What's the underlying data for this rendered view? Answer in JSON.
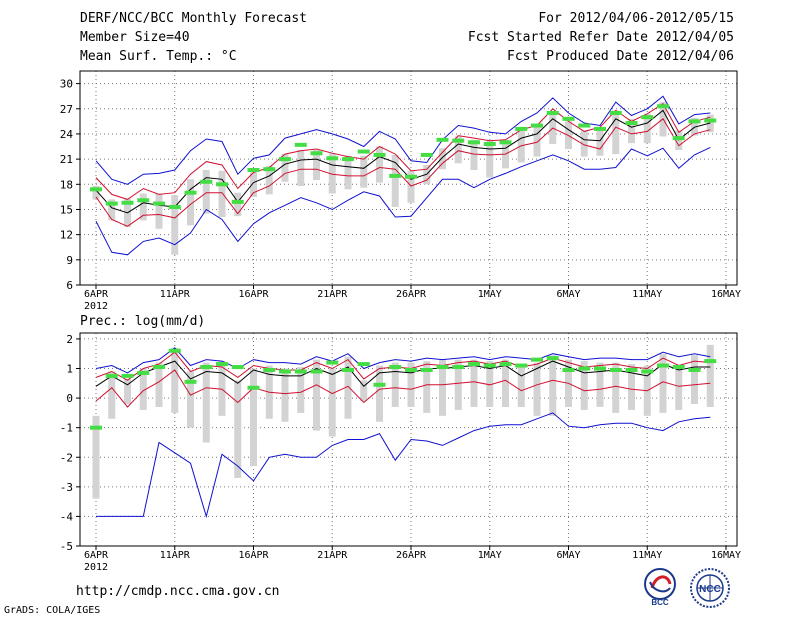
{
  "header": {
    "title": "DERF/NCC/BCC Monthly Forecast",
    "member_size": "Member Size=40",
    "variable": "Mean Surf. Temp.: °C",
    "period": "For 2012/04/06-2012/05/15",
    "fcst_started": "Fcst Started Refer Date 2012/04/05",
    "fcst_produced": "Fcst Produced Date 2012/04/06"
  },
  "footer": {
    "url": "http://cmdp.ncc.cma.gov.cn",
    "credit": "GrADS: COLA/IGES",
    "logo_bcc": "BCC",
    "logo_ncc": "NCC"
  },
  "colors": {
    "max_min": "#1010d0",
    "spread": "#d01030",
    "mean": "#000000",
    "box": "#d3d3d3",
    "marker": "#44dd44",
    "grid": "#777777"
  },
  "chart_data": [
    {
      "type": "line",
      "title": "Mean Surf. Temp.: °C",
      "ylim": [
        6,
        31.5
      ],
      "yticks": [
        6,
        9,
        12,
        15,
        18,
        21,
        24,
        27,
        30
      ],
      "xticks": [
        {
          "day": 0,
          "label": "6APR"
        },
        {
          "day": 5,
          "label": "11APR"
        },
        {
          "day": 10,
          "label": "16APR"
        },
        {
          "day": 15,
          "label": "21APR"
        },
        {
          "day": 20,
          "label": "26APR"
        },
        {
          "day": 25,
          "label": "1MAY"
        },
        {
          "day": 30,
          "label": "6MAY"
        },
        {
          "day": 35,
          "label": "11MAY"
        },
        {
          "day": 40,
          "label": "16MAY"
        }
      ],
      "year_label": "2012",
      "max": [
        20.8,
        18.6,
        18.0,
        19.2,
        19.3,
        19.7,
        22.0,
        23.4,
        23.1,
        19.2,
        21.1,
        21.5,
        23.5,
        24.0,
        24.5,
        24.0,
        23.4,
        22.5,
        24.3,
        23.4,
        20.8,
        20.6,
        23.3,
        25.0,
        24.7,
        24.2,
        24.0,
        25.5,
        26.5,
        28.3,
        26.5,
        25.3,
        25.0,
        27.8,
        26.2,
        27.0,
        28.5,
        25.2,
        26.3,
        26.5
      ],
      "upper": [
        18.8,
        16.8,
        16.2,
        17.5,
        16.8,
        17.0,
        19.2,
        20.7,
        20.3,
        17.5,
        19.4,
        20.0,
        21.6,
        22.0,
        22.2,
        21.7,
        21.3,
        21.0,
        22.5,
        21.6,
        19.6,
        19.8,
        21.8,
        23.8,
        23.5,
        23.2,
        23.3,
        24.5,
        25.0,
        27.0,
        25.5,
        24.3,
        24.8,
        26.8,
        25.5,
        26.4,
        27.6,
        24.2,
        25.5,
        26.0
      ],
      "mean": [
        17.3,
        15.2,
        14.6,
        15.8,
        15.5,
        15.3,
        17.4,
        18.8,
        18.6,
        15.9,
        18.2,
        19.0,
        20.4,
        20.9,
        21.0,
        20.3,
        20.1,
        19.9,
        21.3,
        20.6,
        18.6,
        19.2,
        21.2,
        22.8,
        22.4,
        22.2,
        22.3,
        23.5,
        24.0,
        25.8,
        24.5,
        23.3,
        23.2,
        25.8,
        24.8,
        25.3,
        26.8,
        23.3,
        24.8,
        25.3
      ],
      "lower": [
        16.5,
        13.8,
        13.0,
        14.3,
        14.4,
        14.0,
        15.6,
        17.0,
        17.0,
        14.5,
        17.0,
        17.8,
        19.3,
        19.8,
        19.8,
        19.2,
        19.0,
        19.0,
        20.0,
        19.8,
        17.8,
        18.5,
        20.5,
        22.0,
        21.6,
        21.5,
        21.6,
        22.6,
        23.0,
        24.7,
        23.8,
        22.7,
        22.2,
        24.8,
        24.0,
        24.3,
        25.8,
        22.6,
        24.0,
        24.5
      ],
      "min": [
        13.6,
        9.9,
        9.6,
        11.2,
        11.6,
        10.8,
        12.2,
        15.0,
        13.8,
        11.2,
        13.3,
        14.6,
        15.5,
        16.4,
        15.8,
        15.0,
        16.1,
        17.1,
        16.6,
        14.1,
        14.2,
        16.4,
        18.6,
        18.6,
        17.6,
        18.6,
        19.3,
        20.1,
        20.8,
        21.5,
        20.8,
        19.8,
        19.8,
        20.0,
        22.2,
        21.4,
        22.3,
        19.9,
        21.5,
        22.4
      ],
      "box_hi": [
        17.8,
        16.2,
        16.3,
        16.9,
        16.9,
        16.7,
        18.6,
        19.7,
        19.6,
        17.0,
        19.4,
        20.2,
        21.6,
        22.1,
        22.1,
        21.7,
        21.4,
        21.4,
        22.5,
        21.5,
        19.6,
        20.3,
        22.3,
        23.7,
        23.3,
        23.3,
        23.3,
        24.4,
        24.9,
        26.6,
        25.5,
        24.4,
        24.4,
        26.8,
        25.8,
        26.4,
        27.8,
        24.4,
        25.9,
        26.3
      ],
      "box_lo": [
        16.2,
        13.7,
        12.9,
        13.7,
        12.7,
        9.6,
        13.1,
        14.5,
        14.1,
        14.2,
        16.5,
        16.8,
        18.3,
        17.8,
        18.5,
        16.9,
        17.4,
        17.6,
        18.2,
        15.3,
        15.8,
        18.0,
        19.8,
        20.5,
        19.7,
        18.8,
        19.9,
        20.6,
        21.3,
        22.8,
        22.2,
        21.3,
        21.4,
        21.6,
        22.9,
        22.9,
        23.7,
        22.1,
        23.8,
        24.2
      ],
      "markers": [
        17.4,
        15.7,
        15.8,
        16.1,
        15.7,
        15.3,
        17.0,
        18.3,
        18.0,
        15.9,
        19.7,
        19.8,
        21.0,
        22.7,
        21.7,
        21.1,
        21.0,
        21.9,
        21.5,
        19.0,
        18.9,
        21.5,
        23.3,
        23.2,
        23.0,
        22.8,
        23.0,
        24.6,
        25.0,
        26.5,
        25.8,
        25.0,
        24.6,
        26.5,
        25.3,
        26.0,
        27.3,
        23.5,
        25.5,
        25.6
      ]
    },
    {
      "type": "line",
      "title": "Prec.: log(mm/d)",
      "ylim": [
        -5,
        2.2
      ],
      "yticks": [
        -5,
        -4,
        -3,
        -2,
        -1,
        0,
        1,
        2
      ],
      "xticks": [
        {
          "day": 0,
          "label": "6APR"
        },
        {
          "day": 5,
          "label": "11APR"
        },
        {
          "day": 10,
          "label": "16APR"
        },
        {
          "day": 15,
          "label": "21APR"
        },
        {
          "day": 20,
          "label": "26APR"
        },
        {
          "day": 25,
          "label": "1MAY"
        },
        {
          "day": 30,
          "label": "6MAY"
        },
        {
          "day": 35,
          "label": "11MAY"
        },
        {
          "day": 40,
          "label": "16MAY"
        }
      ],
      "year_label": "2012",
      "max": [
        1.0,
        1.1,
        0.85,
        1.2,
        1.3,
        1.7,
        1.1,
        1.3,
        1.25,
        1.0,
        1.3,
        1.2,
        1.2,
        1.15,
        1.4,
        1.25,
        1.5,
        1.0,
        1.2,
        1.3,
        1.25,
        1.35,
        1.3,
        1.35,
        1.4,
        1.3,
        1.4,
        1.35,
        1.3,
        1.5,
        1.4,
        1.3,
        1.35,
        1.35,
        1.3,
        1.3,
        1.55,
        1.4,
        1.5,
        1.4
      ],
      "upper": [
        0.7,
        0.9,
        0.6,
        1.0,
        1.15,
        1.55,
        0.9,
        1.1,
        1.05,
        0.7,
        1.1,
        1.0,
        0.95,
        0.95,
        1.2,
        1.0,
        1.3,
        0.65,
        1.0,
        1.05,
        1.0,
        1.15,
        1.1,
        1.2,
        1.25,
        1.15,
        1.25,
        1.05,
        1.15,
        1.35,
        1.2,
        1.05,
        1.1,
        1.15,
        1.05,
        1.0,
        1.35,
        1.1,
        1.25,
        1.2
      ],
      "mean": [
        0.4,
        0.75,
        0.45,
        0.85,
        1.05,
        1.25,
        0.65,
        0.9,
        0.85,
        0.5,
        0.95,
        0.8,
        0.75,
        0.75,
        1.0,
        0.8,
        1.05,
        0.4,
        0.85,
        0.9,
        0.85,
        1.0,
        1.0,
        1.05,
        1.1,
        1.0,
        1.1,
        0.75,
        1.0,
        1.25,
        1.05,
        0.85,
        0.9,
        0.95,
        0.85,
        0.75,
        1.15,
        0.95,
        1.05,
        1.05
      ],
      "lower": [
        -0.1,
        0.35,
        -0.3,
        0.25,
        0.55,
        0.95,
        0.1,
        0.35,
        0.3,
        -0.15,
        0.35,
        0.2,
        0.15,
        0.2,
        0.45,
        0.15,
        0.4,
        -0.15,
        0.3,
        0.35,
        0.3,
        0.45,
        0.45,
        0.5,
        0.55,
        0.45,
        0.6,
        0.25,
        0.45,
        0.6,
        0.5,
        0.25,
        0.3,
        0.4,
        0.3,
        0.25,
        0.55,
        0.4,
        0.45,
        0.5
      ],
      "min": [
        -4.0,
        -4.0,
        -4.0,
        -4.0,
        -1.5,
        -1.85,
        -2.2,
        -4.0,
        -1.9,
        -2.3,
        -2.8,
        -2.0,
        -1.9,
        -2.0,
        -2.0,
        -1.6,
        -1.4,
        -1.4,
        -1.2,
        -2.1,
        -1.4,
        -1.45,
        -1.6,
        -1.35,
        -1.1,
        -0.95,
        -0.9,
        -0.9,
        -0.7,
        -0.5,
        -0.95,
        -1.0,
        -0.9,
        -0.85,
        -0.85,
        -1.0,
        -1.1,
        -0.8,
        -0.7,
        -0.65
      ],
      "box_hi": [
        -0.6,
        0.9,
        0.65,
        1.0,
        1.2,
        1.7,
        0.9,
        1.2,
        1.25,
        0.6,
        1.0,
        1.1,
        1.0,
        1.05,
        1.3,
        1.0,
        1.4,
        0.6,
        1.1,
        1.2,
        1.2,
        1.25,
        1.3,
        1.3,
        1.3,
        1.25,
        1.3,
        1.1,
        1.2,
        1.45,
        1.3,
        1.25,
        1.2,
        1.2,
        1.15,
        1.1,
        1.5,
        1.1,
        1.45,
        1.8
      ],
      "box_lo": [
        -3.4,
        -0.7,
        -0.2,
        -0.4,
        -0.3,
        -0.5,
        -1.0,
        -1.5,
        -0.6,
        -2.7,
        -2.3,
        -0.7,
        -0.8,
        -0.5,
        -1.1,
        -1.3,
        -0.7,
        -0.1,
        -0.8,
        -0.3,
        -0.3,
        -0.5,
        -0.6,
        -0.4,
        -0.3,
        -0.3,
        -0.3,
        -0.3,
        -0.6,
        -0.6,
        -0.3,
        -0.4,
        -0.3,
        -0.5,
        -0.4,
        -0.6,
        -0.5,
        -0.4,
        -0.2,
        -0.3
      ],
      "markers": [
        -1.0,
        0.75,
        0.75,
        0.85,
        1.05,
        1.6,
        0.55,
        1.05,
        1.15,
        1.05,
        0.35,
        0.95,
        0.9,
        0.9,
        0.9,
        1.2,
        0.95,
        1.15,
        0.45,
        1.05,
        0.95,
        0.95,
        1.05,
        1.05,
        1.15,
        1.1,
        1.15,
        1.1,
        1.3,
        1.35,
        0.95,
        1.0,
        1.0,
        0.95,
        0.95,
        0.9,
        1.1,
        1.05,
        0.95,
        1.25
      ]
    }
  ]
}
